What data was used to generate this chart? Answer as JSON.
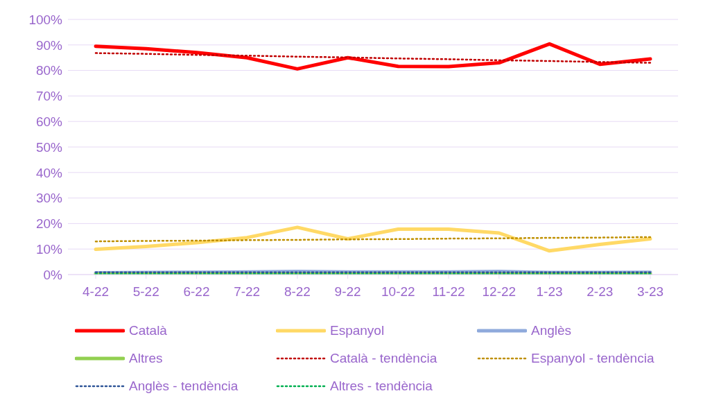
{
  "chart_data": {
    "type": "line",
    "categories": [
      "4-22",
      "5-22",
      "6-22",
      "7-22",
      "8-22",
      "9-22",
      "10-22",
      "11-22",
      "12-22",
      "1-23",
      "2-23",
      "3-23"
    ],
    "series": [
      {
        "name": "Català",
        "color": "#ff0000",
        "line_style": "solid",
        "values": [
          89.5,
          88.5,
          87,
          85,
          80.6,
          85,
          81.6,
          81.5,
          83,
          90.4,
          82.4,
          84.5
        ]
      },
      {
        "name": "Espanyol",
        "color": "#ffd966",
        "line_style": "solid",
        "values": [
          9.9,
          11,
          12.5,
          14.5,
          18.5,
          14,
          17.8,
          17.8,
          16.3,
          9.3,
          11.8,
          14
        ]
      },
      {
        "name": "Anglès",
        "color": "#8faadc",
        "line_style": "solid",
        "values": [
          0.7,
          0.8,
          0.9,
          1,
          1.2,
          1,
          1,
          1,
          1.2,
          0.8,
          0.8,
          0.9
        ]
      },
      {
        "name": "Altres",
        "color": "#92d050",
        "line_style": "solid",
        "values": [
          0.2,
          0.2,
          0.2,
          0.2,
          0.2,
          0.2,
          0.2,
          0.2,
          0.2,
          0.2,
          0.2,
          0.2
        ]
      },
      {
        "name": "Català - tendència",
        "color": "#c00000",
        "line_style": "dotted",
        "values": [
          86.8,
          86.5,
          86.1,
          85.8,
          85.4,
          85.1,
          84.7,
          84.4,
          84,
          83.7,
          83.3,
          83
        ]
      },
      {
        "name": "Espanyol - tendència",
        "color": "#bf9000",
        "line_style": "dotted",
        "values": [
          13,
          13.2,
          13.3,
          13.5,
          13.6,
          13.8,
          13.9,
          14.1,
          14.2,
          14.4,
          14.5,
          14.7
        ]
      },
      {
        "name": "Anglès - tendència",
        "color": "#2f5597",
        "line_style": "dotted",
        "values": [
          0.9,
          0.9,
          0.9,
          0.9,
          0.9,
          0.9,
          0.9,
          0.9,
          0.9,
          0.9,
          0.9,
          0.9
        ]
      },
      {
        "name": "Altres - tendència",
        "color": "#00b050",
        "line_style": "dotted",
        "values": [
          0.2,
          0.2,
          0.2,
          0.2,
          0.2,
          0.2,
          0.2,
          0.2,
          0.2,
          0.2,
          0.2,
          0.2
        ]
      }
    ],
    "ylim": [
      0,
      100
    ],
    "yticks": [
      {
        "value": 0,
        "label": "0%"
      },
      {
        "value": 10,
        "label": "10%"
      },
      {
        "value": 20,
        "label": "20%"
      },
      {
        "value": 30,
        "label": "30%"
      },
      {
        "value": 40,
        "label": "40%"
      },
      {
        "value": 50,
        "label": "50%"
      },
      {
        "value": 60,
        "label": "60%"
      },
      {
        "value": 70,
        "label": "70%"
      },
      {
        "value": 80,
        "label": "80%"
      },
      {
        "value": 90,
        "label": "90%"
      },
      {
        "value": 100,
        "label": "100%"
      }
    ],
    "grid": "y",
    "legend": "bottom",
    "marker": "none"
  }
}
